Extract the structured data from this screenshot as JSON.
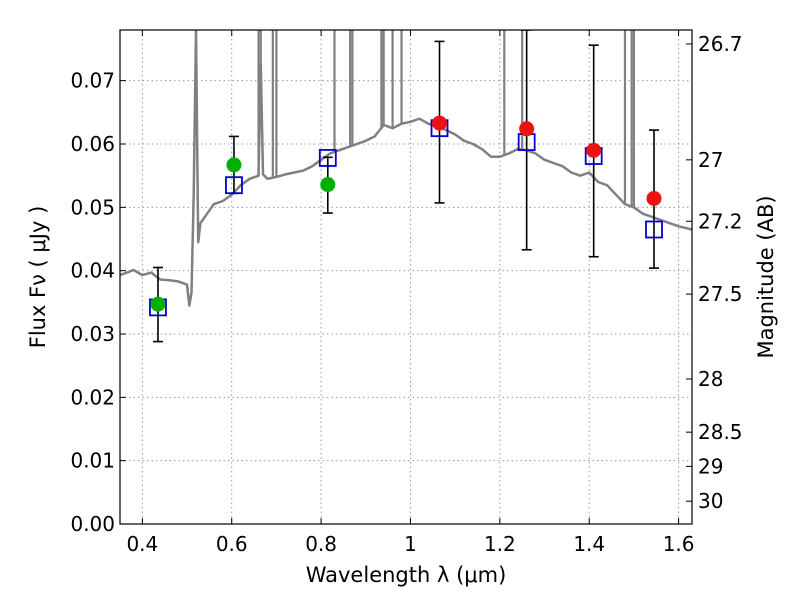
{
  "chart_data": {
    "type": "scatter",
    "xlabel": "Wavelength  λ (μm)",
    "ylabel": "Flux  Fν  ( μJy )",
    "ylabel_right": "Magnitude (AB)",
    "xlim": [
      0.35,
      1.63
    ],
    "ylim": [
      0,
      0.078
    ],
    "x_ticks": [
      0.4,
      0.6,
      0.8,
      1.0,
      1.2,
      1.4,
      1.6
    ],
    "x_tick_labels": [
      "0.4",
      "0.6",
      "0.8",
      "1",
      "1.2",
      "1.4",
      "1.6"
    ],
    "y_ticks": [
      0,
      0.01,
      0.02,
      0.03,
      0.04,
      0.05,
      0.06,
      0.07
    ],
    "y_tick_labels": [
      "0.00",
      "0.01",
      "0.02",
      "0.03",
      "0.04",
      "0.05",
      "0.06",
      "0.07"
    ],
    "right_ticks": [
      {
        "flux": 0.0758,
        "label": "26.7"
      },
      {
        "flux": 0.0575,
        "label": "27"
      },
      {
        "flux": 0.0478,
        "label": "27.2"
      },
      {
        "flux": 0.0363,
        "label": "27.5"
      },
      {
        "flux": 0.0229,
        "label": "28"
      },
      {
        "flux": 0.0145,
        "label": "28.5"
      },
      {
        "flux": 0.0091,
        "label": "29"
      },
      {
        "flux": 0.0036,
        "label": "30"
      }
    ],
    "grid": true,
    "colors": {
      "model": "#808080",
      "observed_optical": "#00b000",
      "observed_nir": "#ee1111",
      "model_photometry": "#0000cc",
      "errorbar": "#000000",
      "grid": "#999999"
    },
    "series": [
      {
        "kind": "line",
        "points": [
          [
            0.35,
            0.0393
          ],
          [
            0.37,
            0.0398
          ],
          [
            0.38,
            0.0401
          ],
          [
            0.4,
            0.0393
          ],
          [
            0.42,
            0.0397
          ],
          [
            0.44,
            0.0386
          ],
          [
            0.46,
            0.0385
          ],
          [
            0.48,
            0.0383
          ],
          [
            0.5,
            0.0378
          ],
          [
            0.505,
            0.0345
          ],
          [
            0.51,
            0.0365
          ],
          [
            0.515,
            0.052
          ],
          [
            0.52,
            0.078
          ],
          [
            0.525,
            0.0445
          ],
          [
            0.53,
            0.0475
          ],
          [
            0.54,
            0.0485
          ],
          [
            0.56,
            0.0505
          ],
          [
            0.58,
            0.051
          ],
          [
            0.6,
            0.052
          ],
          [
            0.62,
            0.0535
          ],
          [
            0.64,
            0.0545
          ],
          [
            0.66,
            0.055
          ],
          [
            0.665,
            0.0725
          ],
          [
            0.67,
            0.0552
          ],
          [
            0.68,
            0.0545
          ],
          [
            0.7,
            0.0548
          ],
          [
            0.72,
            0.0552
          ],
          [
            0.74,
            0.0555
          ],
          [
            0.76,
            0.0558
          ],
          [
            0.78,
            0.0565
          ],
          [
            0.8,
            0.0575
          ],
          [
            0.82,
            0.0585
          ],
          [
            0.84,
            0.059
          ],
          [
            0.86,
            0.0595
          ],
          [
            0.88,
            0.06
          ],
          [
            0.9,
            0.0605
          ],
          [
            0.92,
            0.0612
          ],
          [
            0.94,
            0.063
          ],
          [
            0.96,
            0.0625
          ],
          [
            0.98,
            0.0632
          ],
          [
            1.0,
            0.0635
          ],
          [
            1.02,
            0.064
          ],
          [
            1.04,
            0.0632
          ],
          [
            1.06,
            0.0628
          ],
          [
            1.08,
            0.0622
          ],
          [
            1.1,
            0.0615
          ],
          [
            1.12,
            0.0605
          ],
          [
            1.14,
            0.06
          ],
          [
            1.16,
            0.0592
          ],
          [
            1.18,
            0.058
          ],
          [
            1.2,
            0.058
          ],
          [
            1.22,
            0.0585
          ],
          [
            1.24,
            0.0592
          ],
          [
            1.26,
            0.059
          ],
          [
            1.28,
            0.0585
          ],
          [
            1.3,
            0.0575
          ],
          [
            1.32,
            0.057
          ],
          [
            1.34,
            0.0565
          ],
          [
            1.36,
            0.0555
          ],
          [
            1.38,
            0.055
          ],
          [
            1.4,
            0.0555
          ],
          [
            1.42,
            0.054
          ],
          [
            1.44,
            0.0535
          ],
          [
            1.46,
            0.052
          ],
          [
            1.48,
            0.0505
          ],
          [
            1.5,
            0.05
          ],
          [
            1.52,
            0.049
          ],
          [
            1.54,
            0.0485
          ],
          [
            1.56,
            0.048
          ],
          [
            1.58,
            0.0475
          ],
          [
            1.6,
            0.047
          ],
          [
            1.63,
            0.0465
          ]
        ],
        "emission_lines": [
          0.66,
          0.665,
          0.692,
          0.7,
          0.83,
          0.865,
          0.87,
          0.935,
          0.94,
          0.96,
          0.98,
          1.21,
          1.25,
          1.48,
          1.495,
          1.5
        ]
      },
      {
        "kind": "errorbar_points",
        "color": "#00b000",
        "points": [
          {
            "x": 0.435,
            "y": 0.0347,
            "yerr_low": 0.0288,
            "yerr_high": 0.0405
          },
          {
            "x": 0.605,
            "y": 0.0567,
            "yerr_low": 0.0522,
            "yerr_high": 0.0612
          },
          {
            "x": 0.815,
            "y": 0.0536,
            "yerr_low": 0.0491,
            "yerr_high": 0.0579
          }
        ]
      },
      {
        "kind": "errorbar_points",
        "color": "#ee1111",
        "points": [
          {
            "x": 1.065,
            "y": 0.0633,
            "yerr_low": 0.0507,
            "yerr_high": 0.0762
          },
          {
            "x": 1.26,
            "y": 0.0624,
            "yerr_low": 0.0433,
            "yerr_high": 0.078
          },
          {
            "x": 1.41,
            "y": 0.059,
            "yerr_low": 0.0422,
            "yerr_high": 0.0756
          },
          {
            "x": 1.545,
            "y": 0.0514,
            "yerr_low": 0.0404,
            "yerr_high": 0.0622
          }
        ]
      },
      {
        "kind": "squares",
        "color": "#0000cc",
        "points": [
          [
            0.435,
            0.0342
          ],
          [
            0.605,
            0.0535
          ],
          [
            0.815,
            0.0578
          ],
          [
            1.065,
            0.0625
          ],
          [
            1.26,
            0.0603
          ],
          [
            1.41,
            0.0581
          ],
          [
            1.545,
            0.0465
          ]
        ]
      }
    ]
  }
}
